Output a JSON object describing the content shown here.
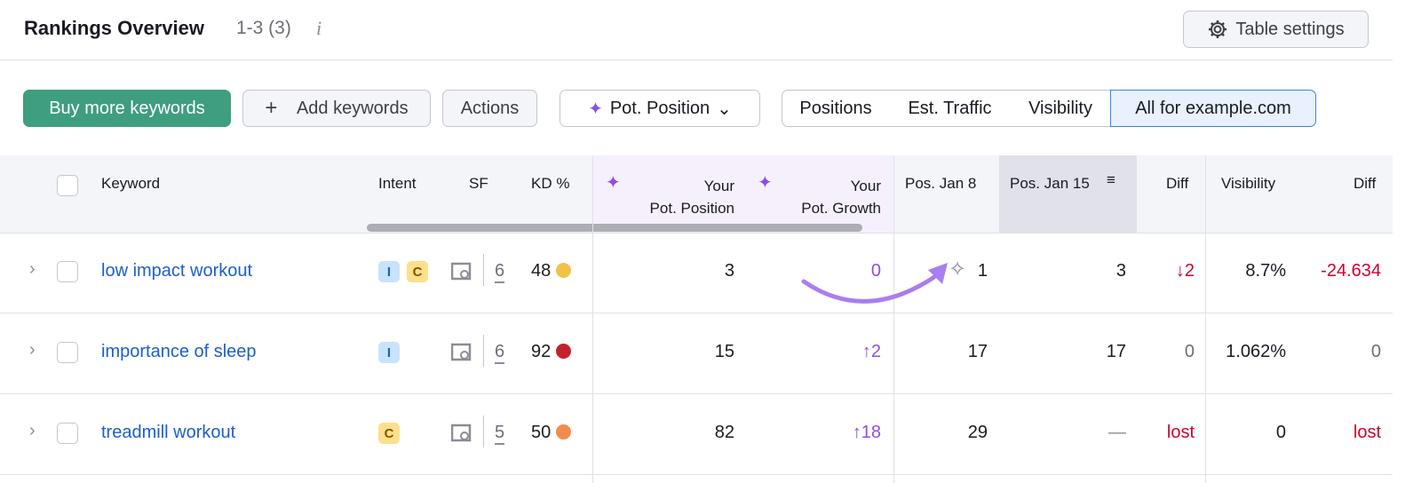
{
  "header": {
    "title": "Rankings Overview",
    "count": "1-3 (3)",
    "info_icon": "i",
    "table_settings": "Table settings"
  },
  "toolbar": {
    "buy": "Buy more keywords",
    "add": "Add keywords",
    "actions": "Actions",
    "pot_position": "Pot. Position",
    "segments": [
      "Positions",
      "Est. Traffic",
      "Visibility",
      "All for example.com"
    ]
  },
  "columns": {
    "keyword": "Keyword",
    "intent": "Intent",
    "sf": "SF",
    "kd": "KD %",
    "pot_pos_1": "Your",
    "pot_pos_2": "Pot. Position",
    "pot_growth_1": "Your",
    "pot_growth_2": "Pot. Growth",
    "pos_jan8": "Pos. Jan 8",
    "pos_jan15": "Pos. Jan 15",
    "diff": "Diff",
    "visibility": "Visibility",
    "diff2": "Diff"
  },
  "colors": {
    "accent_green": "#3e9e7f",
    "purple": "#8c4ee8",
    "red": "#d1002f",
    "kd_yellow": "#f3c148",
    "kd_red": "#c4212f",
    "kd_orange": "#f08c4d"
  },
  "rows": [
    {
      "keyword": "low impact workout",
      "intents": [
        "I",
        "C"
      ],
      "sf": "6",
      "kd": "48",
      "kd_color": "#f3c148",
      "pot_position": "3",
      "pot_growth": "0",
      "pos_jan8": "1",
      "pos_jan15": "3",
      "diff": "↓2",
      "visibility": "8.7%",
      "vis_diff": "-24.634"
    },
    {
      "keyword": "importance of sleep",
      "intents": [
        "I"
      ],
      "sf": "6",
      "kd": "92",
      "kd_color": "#c4212f",
      "pot_position": "15",
      "pot_growth": "↑2",
      "pos_jan8": "17",
      "pos_jan15": "17",
      "diff": "0",
      "visibility": "1.062%",
      "vis_diff": "0"
    },
    {
      "keyword": "treadmill workout",
      "intents": [
        "C"
      ],
      "sf": "5",
      "kd": "50",
      "kd_color": "#f08c4d",
      "pot_position": "82",
      "pot_growth": "↑18",
      "pos_jan8": "29",
      "pos_jan15": "—",
      "diff": "lost",
      "visibility": "0",
      "vis_diff": "lost"
    }
  ]
}
